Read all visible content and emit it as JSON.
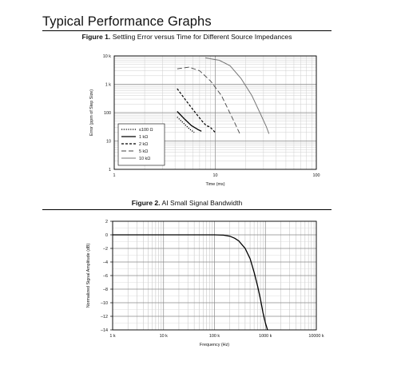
{
  "page": {
    "title": "Typical Performance Graphs"
  },
  "chart_data": [
    {
      "type": "line",
      "caption_num": "Figure 1.",
      "caption_text": "Settling Error versus Time for Different Source Impedances",
      "xlabel": "Time (ms)",
      "ylabel": "Error (ppm of Step Size)",
      "x_scale": "log",
      "y_scale": "log",
      "xlim": [
        1,
        100
      ],
      "ylim": [
        1,
        10000
      ],
      "x_ticks": [
        {
          "v": 1,
          "label": "1"
        },
        {
          "v": 10,
          "label": "10"
        },
        {
          "v": 100,
          "label": "100"
        }
      ],
      "y_ticks": [
        {
          "v": 1,
          "label": "1"
        },
        {
          "v": 10,
          "label": "10"
        },
        {
          "v": 100,
          "label": "100"
        },
        {
          "v": 1000,
          "label": "1 k"
        },
        {
          "v": 10000,
          "label": "10 k"
        }
      ],
      "grid": true,
      "legend_position": "bottom-left",
      "series": [
        {
          "name": "≤100 Ω",
          "style": "dotted",
          "points": [
            [
              4.2,
              70
            ],
            [
              5.0,
              38
            ],
            [
              5.6,
              26
            ],
            [
              6.2,
              20
            ]
          ]
        },
        {
          "name": "1 kΩ",
          "style": "solid",
          "points": [
            [
              4.2,
              110
            ],
            [
              5.0,
              58
            ],
            [
              5.8,
              35
            ],
            [
              6.8,
              25
            ],
            [
              7.3,
              22
            ]
          ]
        },
        {
          "name": "2 kΩ",
          "style": "dashed",
          "points": [
            [
              4.2,
              700
            ],
            [
              5.2,
              250
            ],
            [
              6.5,
              90
            ],
            [
              7.6,
              45
            ],
            [
              8.2,
              34
            ],
            [
              8.8,
              32
            ],
            [
              10.0,
              20
            ]
          ]
        },
        {
          "name": "5 kΩ",
          "style": "longdash",
          "points": [
            [
              4.2,
              3500
            ],
            [
              5.5,
              4000
            ],
            [
              7.0,
              3000
            ],
            [
              9.0,
              1300
            ],
            [
              11.5,
              400
            ],
            [
              14.0,
              95
            ],
            [
              15.5,
              45
            ],
            [
              17.5,
              18
            ]
          ]
        },
        {
          "name": "10 kΩ",
          "style": "solid-gray",
          "points": [
            [
              8.0,
              8500
            ],
            [
              11.0,
              7000
            ],
            [
              14.0,
              4500
            ],
            [
              18.0,
              1600
            ],
            [
              23.0,
              400
            ],
            [
              28.0,
              90
            ],
            [
              32.0,
              32
            ],
            [
              34.0,
              18
            ]
          ]
        }
      ]
    },
    {
      "type": "line",
      "caption_num": "Figure 2.",
      "caption_text": "AI Small Signal Bandwidth",
      "xlabel": "Frequency (Hz)",
      "ylabel": "Normalized Signal Amplitude (dB)",
      "x_scale": "log",
      "y_scale": "linear",
      "xlim": [
        1000,
        10000000
      ],
      "ylim": [
        -14,
        2
      ],
      "x_ticks": [
        {
          "v": 1000,
          "label": "1 k"
        },
        {
          "v": 10000,
          "label": "10 k"
        },
        {
          "v": 100000,
          "label": "100 k"
        },
        {
          "v": 1000000,
          "label": "1000 k"
        },
        {
          "v": 10000000,
          "label": "10000 k"
        }
      ],
      "y_ticks": [
        {
          "v": 2,
          "label": "2"
        },
        {
          "v": 0,
          "label": "0"
        },
        {
          "v": -2,
          "label": "–2"
        },
        {
          "v": -4,
          "label": "–4"
        },
        {
          "v": -6,
          "label": "–6"
        },
        {
          "v": -8,
          "label": "–8"
        },
        {
          "v": -10,
          "label": "–10"
        },
        {
          "v": -12,
          "label": "–12"
        },
        {
          "v": -14,
          "label": "–14"
        }
      ],
      "grid": true,
      "series": [
        {
          "style": "solid",
          "points": [
            [
              1000,
              0
            ],
            [
              100000,
              0
            ],
            [
              150000,
              -0.05
            ],
            [
              200000,
              -0.2
            ],
            [
              250000,
              -0.5
            ],
            [
              300000,
              -0.9
            ],
            [
              400000,
              -2.0
            ],
            [
              500000,
              -3.5
            ],
            [
              600000,
              -5.5
            ],
            [
              700000,
              -7.5
            ],
            [
              800000,
              -9.5
            ],
            [
              900000,
              -11.5
            ],
            [
              1000000,
              -13.0
            ],
            [
              1100000,
              -14.0
            ]
          ]
        }
      ]
    }
  ]
}
